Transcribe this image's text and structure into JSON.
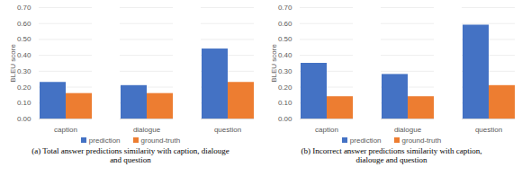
{
  "chart_data": [
    {
      "type": "bar",
      "title": "(a) Total answer predictions similarity with caption, dialouge and question",
      "y_label": "BLEU score",
      "categories": [
        "caption",
        "dialogue",
        "question"
      ],
      "series": [
        {
          "name": "prediction",
          "color": "#4472c4",
          "values": [
            0.23,
            0.21,
            0.44
          ]
        },
        {
          "name": "ground-truth",
          "color": "#ed7d31",
          "values": [
            0.16,
            0.16,
            0.23
          ]
        }
      ],
      "ylim": [
        0,
        0.7
      ],
      "yticks": [
        0,
        0.1,
        0.2,
        0.3,
        0.4,
        0.5,
        0.6,
        0.7
      ],
      "grid": true,
      "legend": "bottom"
    },
    {
      "type": "bar",
      "title": "(b) Incorrect answer predictions similarity with caption, dialouge and question",
      "y_label": "BLEU score",
      "categories": [
        "caption",
        "dialogue",
        "question"
      ],
      "series": [
        {
          "name": "prediction",
          "color": "#4472c4",
          "values": [
            0.35,
            0.28,
            0.59
          ]
        },
        {
          "name": "ground-truth",
          "color": "#ed7d31",
          "values": [
            0.14,
            0.14,
            0.21
          ]
        }
      ],
      "ylim": [
        0,
        0.7
      ],
      "yticks": [
        0,
        0.1,
        0.2,
        0.3,
        0.4,
        0.5,
        0.6,
        0.7
      ],
      "grid": true,
      "legend": "bottom"
    }
  ]
}
